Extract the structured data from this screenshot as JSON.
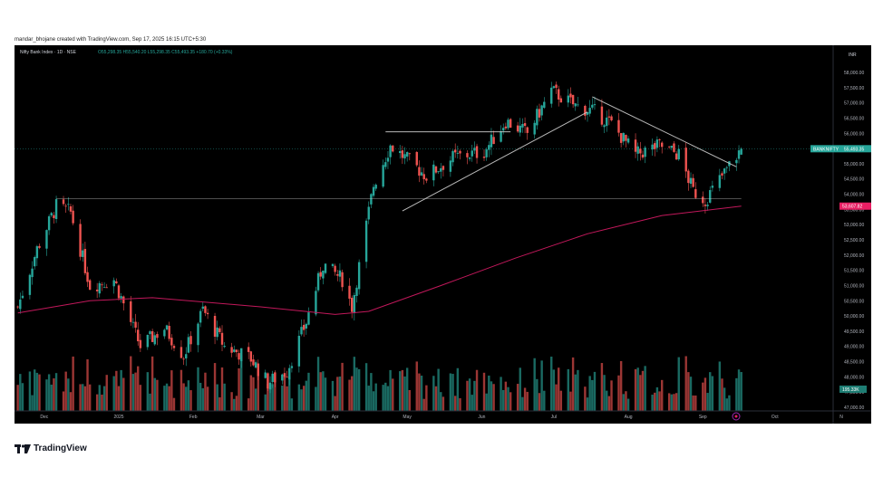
{
  "header": {
    "caption": "mandar_bhojane created with TradingView.com, Sep 17, 2025 16:15 UTC+5:30"
  },
  "legend": {
    "symbol": "Nifty Bank Index · 1D · NSE",
    "ohlc": "O55,298.35  H55,540.20  L55,298.35  C55,493.35  +180.70 (+0.33%)"
  },
  "price_axis": {
    "currency": "INR",
    "ticks": [
      "58,000.00",
      "57,500.00",
      "57,000.00",
      "56,500.00",
      "56,000.00",
      "55,500.00",
      "55,000.00",
      "54,500.00",
      "54,000.00",
      "53,500.00",
      "53,000.00",
      "52,500.00",
      "52,000.00",
      "51,500.00",
      "51,000.00",
      "50,500.00",
      "50,000.00",
      "49,500.00",
      "49,000.00",
      "48,500.00",
      "48,000.00",
      "47,500.00",
      "47,000.00"
    ],
    "last_price_label": "BANKNIFTY",
    "last_price": "55,493.35",
    "ma_label": "53,607.82",
    "volume_label": "195.33K"
  },
  "time_axis": {
    "labels": [
      "Dec",
      "2025",
      "Feb",
      "Mar",
      "Apr",
      "May",
      "Jun",
      "Jul",
      "Aug",
      "Sep",
      "Oct",
      "N"
    ]
  },
  "footer": {
    "brand": "TradingView"
  },
  "colors": {
    "up": "#26a69a",
    "down": "#ef5350",
    "up_volume": "#1e7d73",
    "down_volume": "#b73f3d",
    "ma": "#c2185b",
    "trendline": "#cfcfcf",
    "background": "#000000",
    "axis_text": "#b2b5be",
    "last_price_badge": "#26a69a",
    "ma_badge": "#e91e63"
  },
  "chart_data": {
    "type": "candlestick",
    "symbol": "BANKNIFTY",
    "timeframe": "1D",
    "y_range": [
      46800,
      58400
    ],
    "last_close": 55493.35,
    "moving_average_last": 53607.82,
    "anchors": [
      {
        "date": "2024-11-20",
        "close": 50300
      },
      {
        "date": "2024-11-28",
        "close": 52200
      },
      {
        "date": "2024-12-06",
        "close": 53600
      },
      {
        "date": "2024-12-12",
        "close": 53400
      },
      {
        "date": "2024-12-20",
        "close": 51000
      },
      {
        "date": "2024-12-30",
        "close": 51200
      },
      {
        "date": "2025-01-10",
        "close": 49000
      },
      {
        "date": "2025-01-20",
        "close": 49600
      },
      {
        "date": "2025-01-28",
        "close": 48700
      },
      {
        "date": "2025-02-05",
        "close": 50200
      },
      {
        "date": "2025-02-14",
        "close": 49000
      },
      {
        "date": "2025-02-25",
        "close": 48600
      },
      {
        "date": "2025-03-04",
        "close": 47800
      },
      {
        "date": "2025-03-12",
        "close": 48200
      },
      {
        "date": "2025-03-20",
        "close": 49800
      },
      {
        "date": "2025-03-27",
        "close": 51700
      },
      {
        "date": "2025-04-04",
        "close": 51200
      },
      {
        "date": "2025-04-08",
        "close": 50300
      },
      {
        "date": "2025-04-17",
        "close": 54300
      },
      {
        "date": "2025-04-24",
        "close": 55600
      },
      {
        "date": "2025-05-09",
        "close": 54600
      },
      {
        "date": "2025-05-20",
        "close": 55200
      },
      {
        "date": "2025-06-02",
        "close": 55400
      },
      {
        "date": "2025-06-11",
        "close": 56400
      },
      {
        "date": "2025-06-20",
        "close": 56000
      },
      {
        "date": "2025-06-30",
        "close": 57400
      },
      {
        "date": "2025-07-10",
        "close": 56900
      },
      {
        "date": "2025-07-18",
        "close": 56700
      },
      {
        "date": "2025-07-25",
        "close": 56300
      },
      {
        "date": "2025-08-04",
        "close": 55300
      },
      {
        "date": "2025-08-14",
        "close": 55600
      },
      {
        "date": "2025-08-22",
        "close": 55300
      },
      {
        "date": "2025-08-28",
        "close": 54100
      },
      {
        "date": "2025-09-02",
        "close": 53800
      },
      {
        "date": "2025-09-10",
        "close": 54700
      },
      {
        "date": "2025-09-17",
        "close": 55493.35
      }
    ],
    "ma_anchors": [
      {
        "date": "2024-11-20",
        "value": 50100
      },
      {
        "date": "2024-12-20",
        "value": 50500
      },
      {
        "date": "2025-01-15",
        "value": 50600
      },
      {
        "date": "2025-03-01",
        "value": 50300
      },
      {
        "date": "2025-04-01",
        "value": 50050
      },
      {
        "date": "2025-04-15",
        "value": 50150
      },
      {
        "date": "2025-05-15",
        "value": 51000
      },
      {
        "date": "2025-06-15",
        "value": 51900
      },
      {
        "date": "2025-07-15",
        "value": 52700
      },
      {
        "date": "2025-08-15",
        "value": 53300
      },
      {
        "date": "2025-09-17",
        "value": 53607.82
      }
    ],
    "trendlines": [
      {
        "from": {
          "date": "2025-04-22",
          "value": 56050
        },
        "to": {
          "date": "2025-06-13",
          "value": 56050
        }
      },
      {
        "from": {
          "date": "2025-04-29",
          "value": 53450
        },
        "to": {
          "date": "2025-07-15",
          "value": 56700
        }
      },
      {
        "from": {
          "date": "2025-07-17",
          "value": 57200
        },
        "to": {
          "date": "2025-09-15",
          "value": 54900
        }
      },
      {
        "from": {
          "date": "2024-12-06",
          "value": 53850
        },
        "to": {
          "date": "2025-09-17",
          "value": 53850
        }
      }
    ],
    "volume_range": [
      0,
      300000
    ]
  }
}
